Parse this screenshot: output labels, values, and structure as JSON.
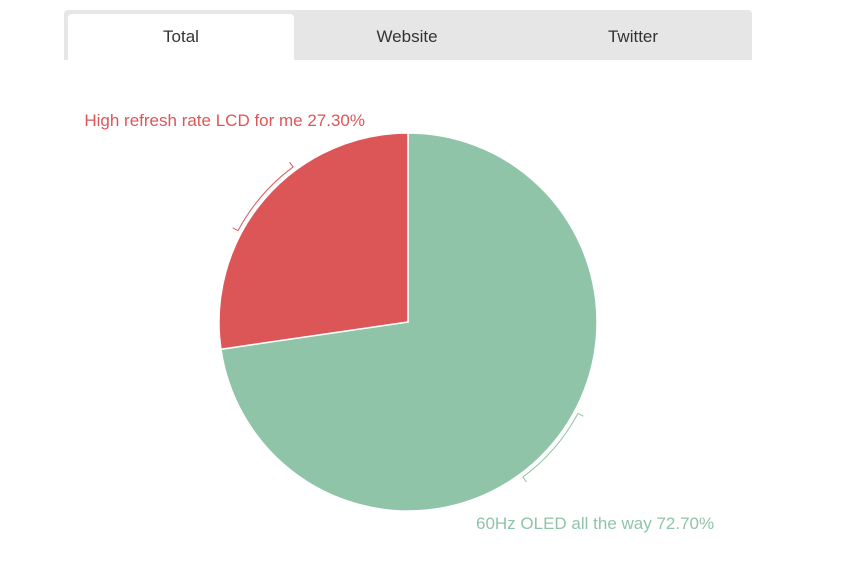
{
  "tabs": [
    {
      "label": "Total",
      "active": true
    },
    {
      "label": "Website",
      "active": false
    },
    {
      "label": "Twitter",
      "active": false
    }
  ],
  "chart_data": {
    "type": "pie",
    "title": "",
    "slices": [
      {
        "label": "60Hz OLED all the way",
        "value": 72.7,
        "display": "72.70%",
        "color": "#8fc4a8"
      },
      {
        "label": "High refresh rate LCD for me",
        "value": 27.3,
        "display": "27.30%",
        "color": "#dc5658"
      }
    ]
  }
}
